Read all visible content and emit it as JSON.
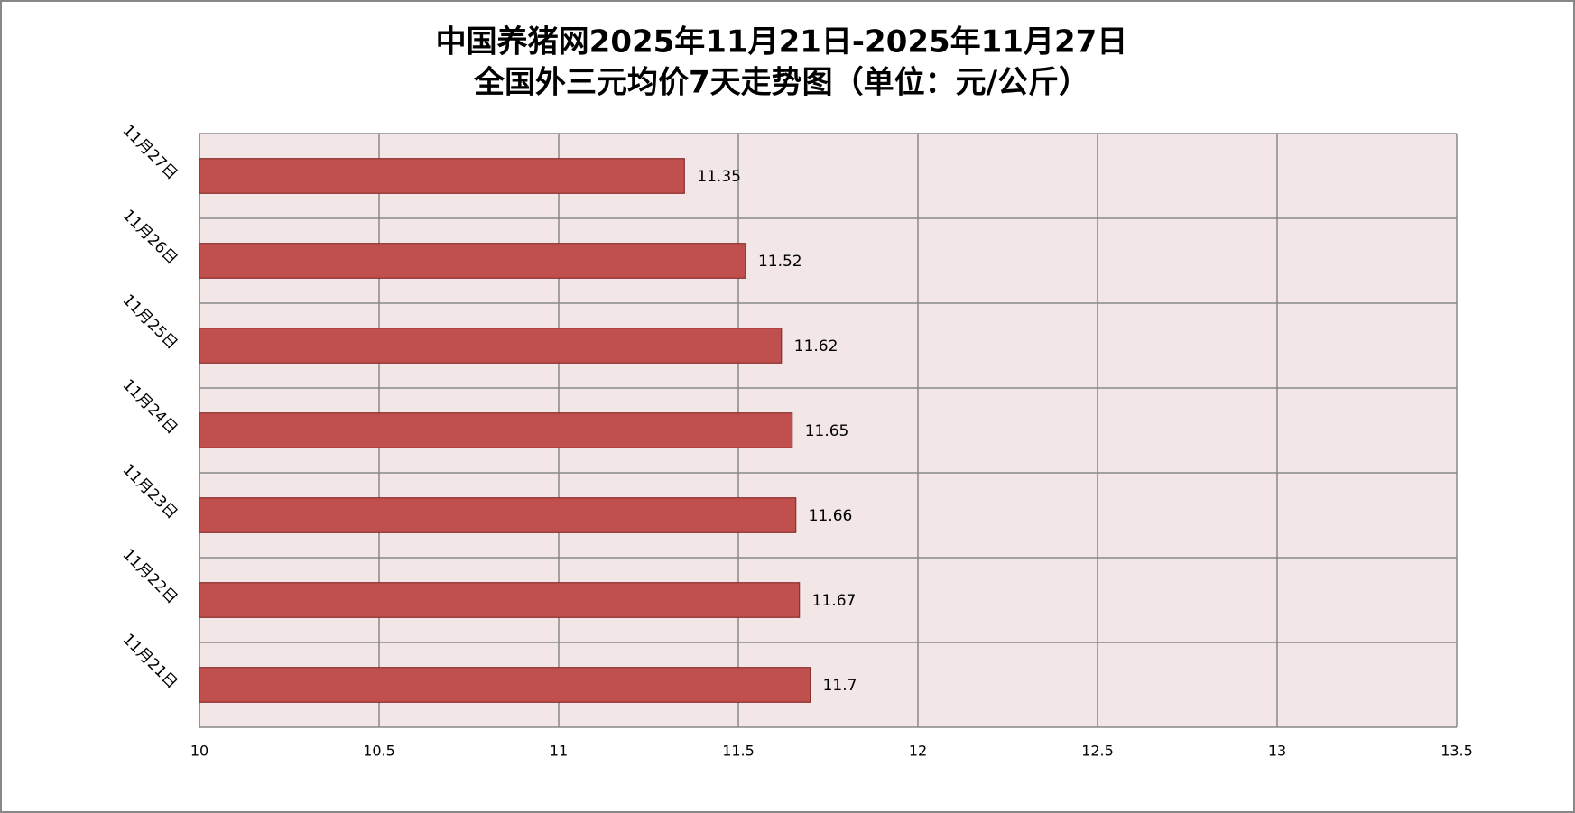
{
  "chart_data": {
    "type": "hbar",
    "title": "中国养猪网2025年11月21日-2025年11月27日",
    "subtitle": "全国外三元均价7天走势图（单位：元/公斤）",
    "categories": [
      "11月21日",
      "11月22日",
      "11月23日",
      "11月24日",
      "11月25日",
      "11月26日",
      "11月27日"
    ],
    "values": [
      11.7,
      11.67,
      11.66,
      11.65,
      11.62,
      11.52,
      11.35
    ],
    "color": "#c0504d",
    "xlim": [
      10,
      13.5
    ],
    "xticks": [
      10,
      10.5,
      11,
      11.5,
      12,
      12.5,
      13,
      13.5
    ],
    "grid": true
  }
}
